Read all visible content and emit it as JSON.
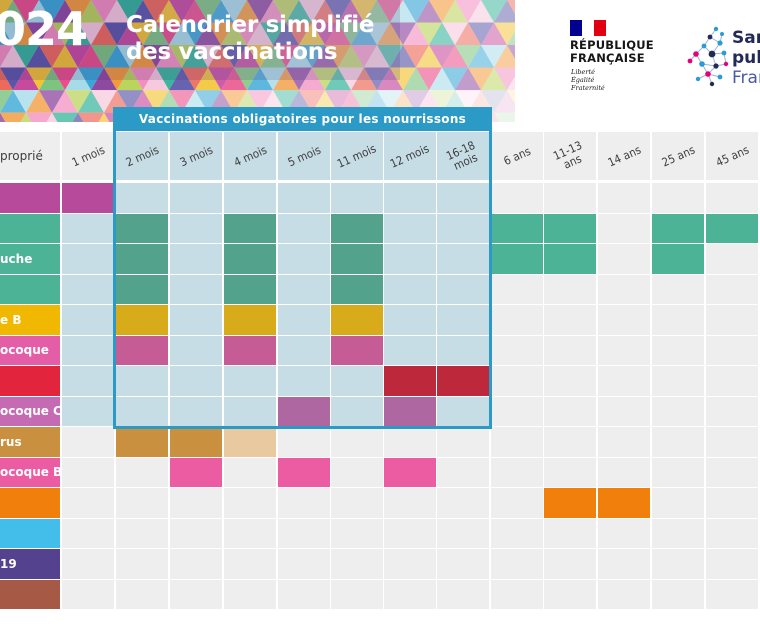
{
  "header": {
    "year": "024",
    "title_line1": "Calendrier simplifié",
    "title_line2": "des vaccinations"
  },
  "republique_logo": {
    "name_line1": "RÉPUBLIQUE",
    "name_line2": "FRANÇAISE",
    "motto_line1": "Liberté",
    "motto_line2": "Égalité",
    "motto_line3": "Fraternité",
    "flag_colors": [
      "#000091",
      "#ffffff",
      "#e1000f"
    ]
  },
  "sante_logo": {
    "line1": "San",
    "line2": "pub",
    "line3": "Fran",
    "colors": [
      "#232a57",
      "#e6007e",
      "#2b9bd6"
    ]
  },
  "mandatory_block": {
    "title": "Vaccinations obligatoires pour les nourrissons",
    "color": "#2c9ac6"
  },
  "table": {
    "corner_label": "proprié",
    "columns": [
      [
        "1 mois"
      ],
      [
        "2 mois"
      ],
      [
        "3 mois"
      ],
      [
        "4 mois"
      ],
      [
        "5 mois"
      ],
      [
        "11 mois"
      ],
      [
        "12 mois"
      ],
      [
        "16-18",
        "mois"
      ],
      [
        "6 ans"
      ],
      [
        "11-13",
        "ans"
      ],
      [
        "14 ans"
      ],
      [
        "25 ans"
      ],
      [
        "45 ans"
      ]
    ],
    "rows": [
      {
        "label": "",
        "color": "#b84a9c",
        "cells": [
          1,
          0,
          0,
          0,
          0,
          0,
          0,
          0,
          0,
          0,
          0,
          0,
          0
        ]
      },
      {
        "label": "",
        "color": "#4db396",
        "cells": [
          0,
          1,
          0,
          1,
          0,
          1,
          0,
          0,
          1,
          1,
          0,
          1,
          1
        ]
      },
      {
        "label": "uche",
        "color": "#4db396",
        "cells": [
          0,
          1,
          0,
          1,
          0,
          1,
          0,
          0,
          1,
          1,
          0,
          1,
          0
        ]
      },
      {
        "label": "",
        "color": "#4db396",
        "cells": [
          0,
          1,
          0,
          1,
          0,
          1,
          0,
          0,
          0,
          0,
          0,
          0,
          0
        ]
      },
      {
        "label": "e B",
        "color": "#f0b800",
        "cells": [
          0,
          1,
          0,
          1,
          0,
          1,
          0,
          0,
          0,
          0,
          0,
          0,
          0
        ]
      },
      {
        "label": "ocoque",
        "color": "#e35ea6",
        "cells": [
          0,
          1,
          0,
          1,
          0,
          1,
          0,
          0,
          0,
          0,
          0,
          0,
          0
        ]
      },
      {
        "label": "",
        "color": "#e2253d",
        "cells": [
          0,
          0,
          0,
          0,
          0,
          0,
          1,
          1,
          0,
          0,
          0,
          0,
          0
        ]
      },
      {
        "label": "ocoque C",
        "color": "#c56bb3",
        "cells": [
          0,
          0,
          0,
          0,
          1,
          0,
          1,
          0,
          0,
          0,
          0,
          0,
          0
        ]
      },
      {
        "label": "rus",
        "color": "#c9913f",
        "cells": [
          0,
          1,
          1,
          2,
          0,
          0,
          0,
          0,
          0,
          0,
          0,
          0,
          0
        ]
      },
      {
        "label": "ocoque B",
        "color": "#ec5ca3",
        "cells": [
          0,
          0,
          1,
          0,
          1,
          0,
          1,
          0,
          0,
          0,
          0,
          0,
          0
        ]
      },
      {
        "label": "",
        "color": "#f07f0c",
        "cells": [
          0,
          0,
          0,
          0,
          0,
          0,
          0,
          0,
          0,
          1,
          1,
          0,
          0
        ]
      },
      {
        "label": "",
        "color": "#43bde9",
        "cells": [
          0,
          0,
          0,
          0,
          0,
          0,
          0,
          0,
          0,
          0,
          0,
          0,
          0
        ]
      },
      {
        "label": "19",
        "color": "#55428f",
        "cells": [
          0,
          0,
          0,
          0,
          0,
          0,
          0,
          0,
          0,
          0,
          0,
          0,
          0
        ]
      },
      {
        "label": "",
        "color": "#a65a46",
        "cells": [
          0,
          0,
          0,
          0,
          0,
          0,
          0,
          0,
          0,
          0,
          0,
          0,
          0
        ]
      }
    ]
  }
}
